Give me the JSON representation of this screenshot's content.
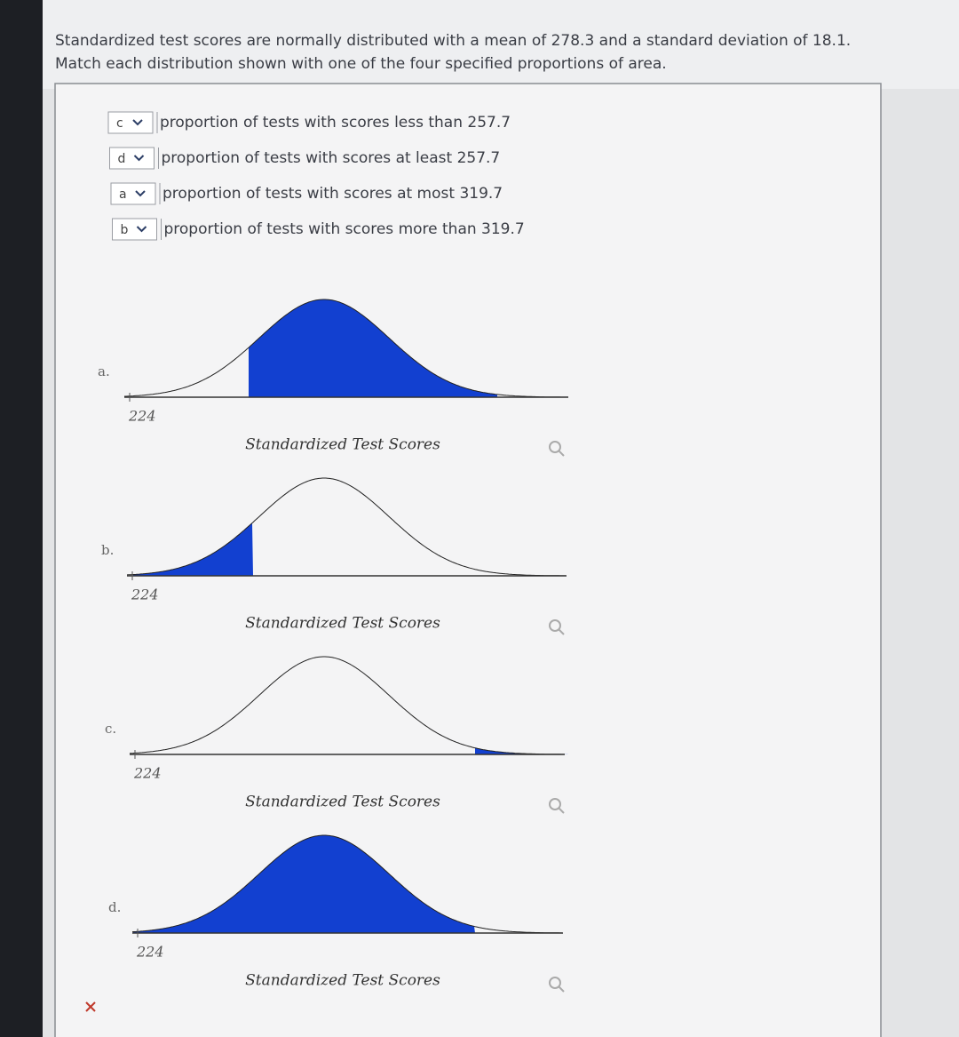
{
  "question": {
    "lines": [
      "Standardized test scores are normally distributed with a mean of 278.3 and a standard deviation of 18.1.",
      "Match each distribution shown with one of the four specified proportions of area."
    ]
  },
  "matches": [
    {
      "selected": "c",
      "label": "proportion of tests with scores less than 257.7"
    },
    {
      "selected": "d",
      "label": "proportion of tests with scores at least 257.7"
    },
    {
      "selected": "a",
      "label": "proportion of tests with scores at most 319.7"
    },
    {
      "selected": "b",
      "label": "proportion of tests with scores more than 319.7"
    }
  ],
  "graphs": [
    {
      "label": "a.",
      "tick": 224,
      "axis_label": "Standardized Test Scores"
    },
    {
      "label": "b.",
      "tick": 224,
      "axis_label": "Standardized Test Scores"
    },
    {
      "label": "c.",
      "tick": 224,
      "axis_label": "Standardized Test Scores"
    },
    {
      "label": "d.",
      "tick": 224,
      "axis_label": "Standardized Test Scores"
    }
  ]
}
